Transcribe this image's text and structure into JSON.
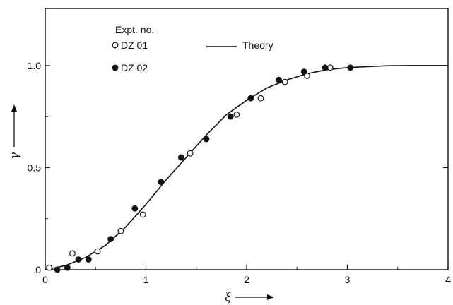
{
  "chart_data": {
    "type": "scatter",
    "xlabel": "ξ",
    "ylabel": "γ",
    "xlim": [
      0,
      4
    ],
    "ylim": [
      0,
      1.28
    ],
    "x_ticks": [
      0,
      1,
      2,
      3,
      4
    ],
    "y_ticks": [
      0,
      0.5,
      1.0
    ],
    "x_tick_labels": [
      "0",
      "1",
      "2",
      "3",
      "4"
    ],
    "y_tick_labels": [
      "0",
      "0.5",
      "1.0"
    ],
    "grid": false,
    "legend": {
      "header": "Expt. no.",
      "placement": "top-left",
      "theory_label": "Theory"
    },
    "series": [
      {
        "name": "DZ 01",
        "marker": "open-circle",
        "x": [
          0.04,
          0.27,
          0.52,
          0.75,
          0.97,
          1.44,
          1.9,
          2.14,
          2.38,
          2.6,
          2.83
        ],
        "y": [
          0.01,
          0.08,
          0.09,
          0.19,
          0.27,
          0.57,
          0.76,
          0.84,
          0.92,
          0.95,
          0.99
        ]
      },
      {
        "name": "DZ 02",
        "marker": "filled-circle",
        "x": [
          0.12,
          0.22,
          0.33,
          0.43,
          0.65,
          0.89,
          1.15,
          1.35,
          1.6,
          1.84,
          2.04,
          2.32,
          2.57,
          2.78,
          3.03
        ],
        "y": [
          0.0,
          0.01,
          0.05,
          0.05,
          0.15,
          0.3,
          0.43,
          0.55,
          0.64,
          0.75,
          0.84,
          0.93,
          0.97,
          0.99,
          0.99
        ]
      },
      {
        "name": "Theory",
        "marker": "line",
        "x": [
          0,
          0.2,
          0.4,
          0.6,
          0.8,
          1.0,
          1.2,
          1.4,
          1.6,
          1.8,
          2.0,
          2.2,
          2.4,
          2.6,
          2.8,
          3.0,
          3.2,
          3.4,
          3.6,
          4.0
        ],
        "y": [
          0.0,
          0.02,
          0.06,
          0.12,
          0.21,
          0.32,
          0.44,
          0.55,
          0.66,
          0.76,
          0.83,
          0.89,
          0.93,
          0.96,
          0.98,
          0.99,
          0.995,
          0.999,
          1.0,
          1.0
        ]
      }
    ],
    "colors": {
      "ink": "#111111",
      "background": "#ffffff"
    }
  }
}
